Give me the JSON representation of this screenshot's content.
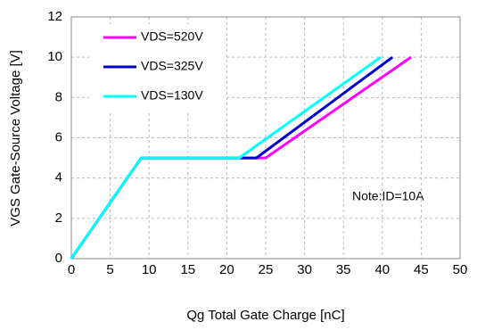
{
  "chart_data": {
    "type": "line",
    "xlabel": "Qg Total Gate Charge [nC]",
    "ylabel": "VGS Gate-Source Voltage [V]",
    "annotation": "Note:ID=10A",
    "xlim": [
      0,
      50
    ],
    "xticks": [
      0,
      5,
      10,
      15,
      20,
      25,
      30,
      35,
      40,
      45,
      50
    ],
    "ylim": [
      0,
      12
    ],
    "yticks": [
      0,
      2,
      4,
      6,
      8,
      10,
      12
    ],
    "grid": true,
    "series": [
      {
        "name": "VDS=520V",
        "color": "#ff00ff",
        "x": [
          0,
          9,
          25,
          43.7
        ],
        "values": [
          0,
          5,
          5,
          10
        ]
      },
      {
        "name": "VDS=325V",
        "color": "#0000cc",
        "x": [
          0,
          9,
          23.8,
          41.3
        ],
        "values": [
          0,
          5,
          5,
          10
        ]
      },
      {
        "name": "VDS=130V",
        "color": "#00ffff",
        "x": [
          0,
          9,
          21.6,
          39.8
        ],
        "values": [
          0,
          5,
          5,
          10
        ]
      }
    ]
  }
}
